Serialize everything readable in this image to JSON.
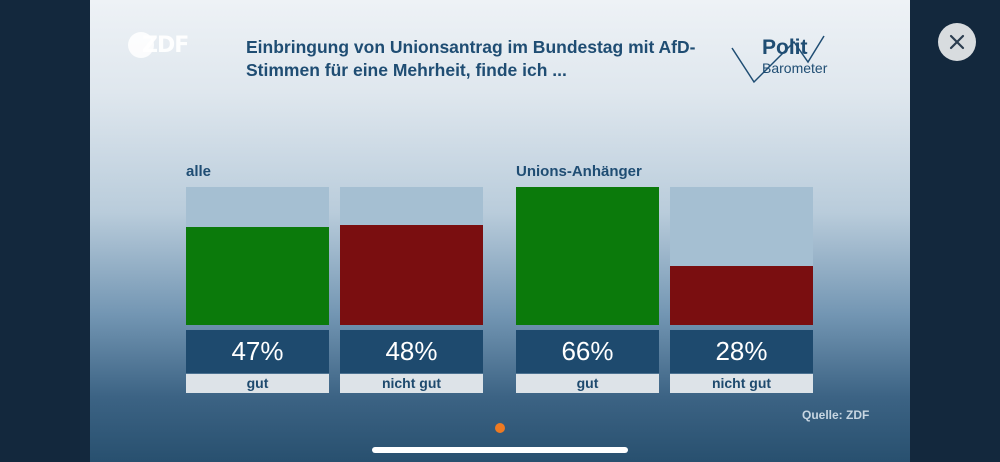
{
  "header": {
    "title": "Einbringung von Unionsantrag im Bundestag mit AfD-Stimmen für eine Mehrheit, finde ich ...",
    "logo_left": "ZDF",
    "logo_right_line1": "Polit",
    "logo_right_line2": "Barometer"
  },
  "chart_data": {
    "type": "bar",
    "title": "Einbringung von Unionsantrag im Bundestag mit AfD-Stimmen für eine Mehrheit, finde ich ...",
    "ylim": [
      0,
      100
    ],
    "groups": [
      {
        "name": "alle",
        "bars": [
          {
            "label": "gut",
            "value": 47,
            "value_label": "47%",
            "color": "#0b7a0b"
          },
          {
            "label": "nicht gut",
            "value": 48,
            "value_label": "48%",
            "color": "#7a0e10"
          }
        ]
      },
      {
        "name": "Unions-Anhänger",
        "bars": [
          {
            "label": "gut",
            "value": 66,
            "value_label": "66%",
            "color": "#0b7a0b"
          },
          {
            "label": "nicht gut",
            "value": 28,
            "value_label": "28%",
            "color": "#7a0e10"
          }
        ]
      }
    ]
  },
  "footer": {
    "source": "Quelle: ZDF"
  },
  "colors": {
    "good": "#0b7a0b",
    "not_good": "#7a0e10",
    "title": "#1f4d73",
    "page_indicator": "#ee7a22"
  },
  "icons": {
    "close": "close-icon"
  }
}
